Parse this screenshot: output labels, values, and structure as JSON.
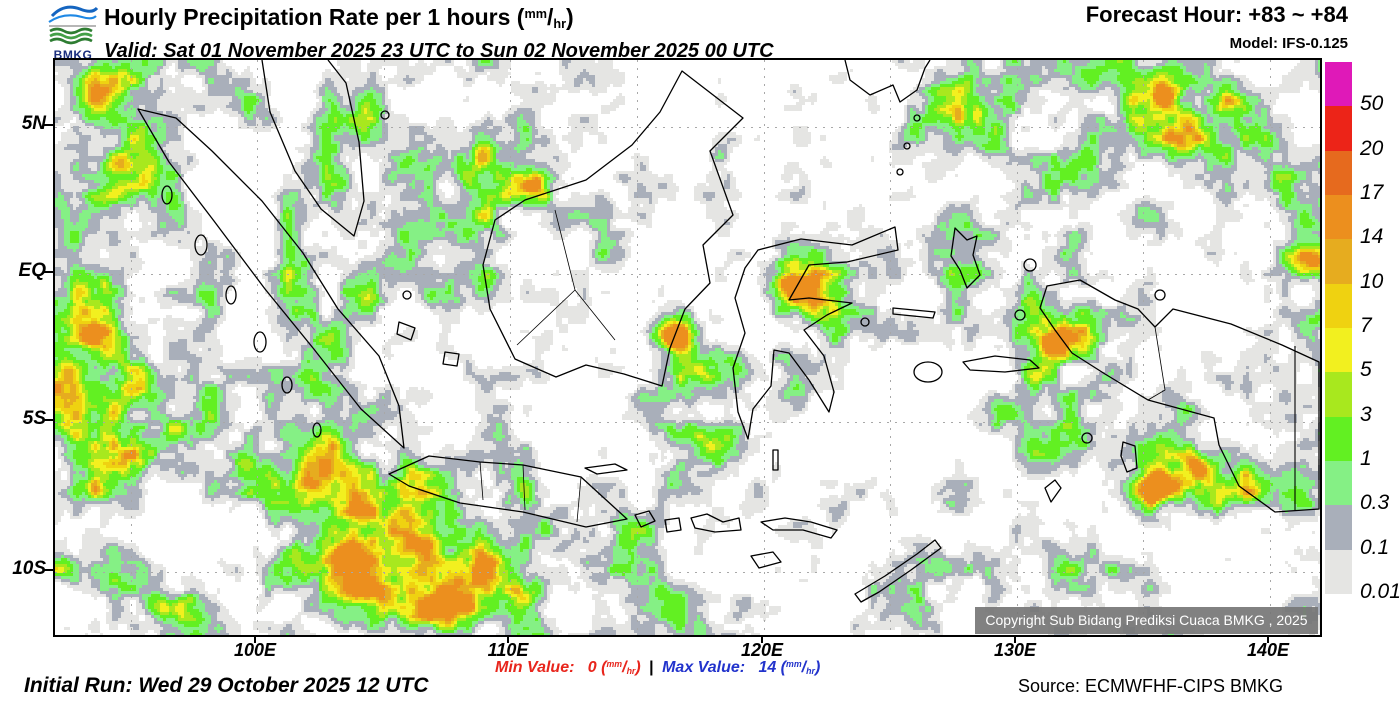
{
  "header": {
    "logo_text": "BMKG",
    "title": "Hourly Precipitation Rate per 1 hours",
    "valid": "Valid: Sat 01 November 2025 23 UTC to Sun 02 November 2025 00 UTC",
    "forecast_hour": "Forecast Hour: +83 ~ +84",
    "model": "Model: IFS-0.125"
  },
  "units": {
    "numerator": "mm",
    "denominator": "hr"
  },
  "map": {
    "lat_labels": [
      "5N",
      "EQ",
      "5S",
      "10S"
    ],
    "lon_labels": [
      "100E",
      "110E",
      "120E",
      "130E",
      "140E"
    ],
    "copyright": "Copyright Sub Bidang Prediksi Cuaca BMKG , 2025"
  },
  "legend": {
    "values": [
      "50",
      "20",
      "17",
      "14",
      "10",
      "7",
      "5",
      "3",
      "1",
      "0.3",
      "0.1",
      "0.01"
    ],
    "colors": [
      "#DF19B8",
      "#EC2418",
      "#E66A1E",
      "#EC8F1E",
      "#E6AC1F",
      "#EFD211",
      "#F2F01F",
      "#A8E81E",
      "#62F022",
      "#85F085",
      "#A9AFBA",
      "#E5E5E3"
    ]
  },
  "footer": {
    "initial_run": "Initial Run: Wed 29 October 2025 12 UTC",
    "min_label": "Min Value:",
    "min_value": "0",
    "separator": "|",
    "max_label": "Max Value:",
    "max_value": "14",
    "source": "Source: ECMWFHF-CIPS BMKG",
    "min_color": "#E8251C",
    "max_color": "#2233CC"
  },
  "chart_data": {
    "type": "heatmap",
    "title": "Hourly Precipitation Rate per 1 hours (mm/hr)",
    "scale_mm_per_hr": [
      0.01,
      0.1,
      0.3,
      1,
      3,
      5,
      7,
      10,
      14,
      17,
      20,
      50
    ],
    "min_value": 0,
    "max_value": 14
  }
}
